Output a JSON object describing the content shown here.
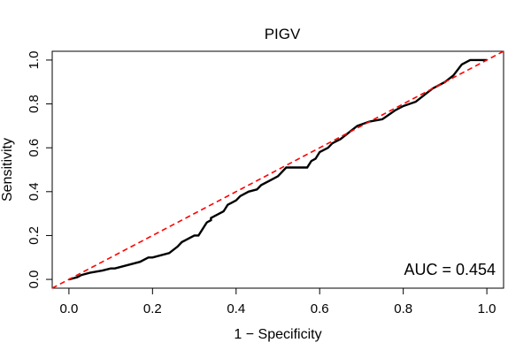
{
  "chart_data": {
    "type": "line",
    "title": "PIGV",
    "xlabel": "1 − Specificity",
    "ylabel": "Sensitivity",
    "xlim": [
      -0.04,
      1.04
    ],
    "ylim": [
      -0.04,
      1.04
    ],
    "x_ticks": [
      0.0,
      0.2,
      0.4,
      0.6,
      0.8,
      1.0
    ],
    "x_tick_labels": [
      "0.0",
      "0.2",
      "0.4",
      "0.6",
      "0.8",
      "1.0"
    ],
    "y_ticks": [
      0.0,
      0.2,
      0.4,
      0.6,
      0.8,
      1.0
    ],
    "y_tick_labels": [
      "0.0",
      "0.2",
      "0.4",
      "0.6",
      "0.8",
      "1.0"
    ],
    "annotation": "AUC = 0.454",
    "auc": 0.454,
    "series": [
      {
        "name": "ROC curve",
        "color": "#000000",
        "x": [
          0.0,
          0.02,
          0.03,
          0.05,
          0.08,
          0.1,
          0.11,
          0.17,
          0.19,
          0.2,
          0.24,
          0.26,
          0.27,
          0.28,
          0.29,
          0.3,
          0.31,
          0.33,
          0.34,
          0.34,
          0.36,
          0.37,
          0.38,
          0.39,
          0.4,
          0.41,
          0.43,
          0.45,
          0.46,
          0.48,
          0.5,
          0.52,
          0.57,
          0.58,
          0.59,
          0.6,
          0.62,
          0.63,
          0.64,
          0.65,
          0.67,
          0.69,
          0.72,
          0.75,
          0.78,
          0.8,
          0.83,
          0.85,
          0.87,
          0.9,
          0.92,
          0.94,
          0.96,
          1.0
        ],
        "y": [
          0.0,
          0.01,
          0.02,
          0.03,
          0.04,
          0.05,
          0.05,
          0.08,
          0.1,
          0.1,
          0.12,
          0.15,
          0.17,
          0.18,
          0.19,
          0.2,
          0.2,
          0.26,
          0.27,
          0.28,
          0.3,
          0.31,
          0.34,
          0.35,
          0.36,
          0.38,
          0.4,
          0.41,
          0.43,
          0.45,
          0.47,
          0.51,
          0.51,
          0.54,
          0.55,
          0.58,
          0.6,
          0.62,
          0.63,
          0.64,
          0.67,
          0.7,
          0.72,
          0.73,
          0.77,
          0.79,
          0.81,
          0.84,
          0.87,
          0.9,
          0.93,
          0.98,
          1.0,
          1.0
        ]
      },
      {
        "name": "Reference diagonal",
        "color": "#ff0000",
        "style": "dashed",
        "x": [
          -0.04,
          1.04
        ],
        "y": [
          -0.04,
          1.04
        ]
      }
    ]
  }
}
